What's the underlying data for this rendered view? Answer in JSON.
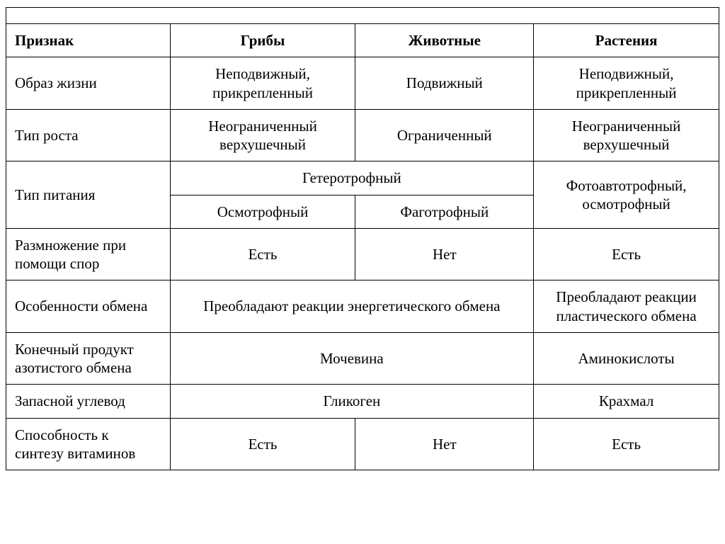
{
  "table": {
    "type": "table",
    "border_color": "#000000",
    "background_color": "#ffffff",
    "font_family": "Times New Roman",
    "header_fontsize": 21,
    "cell_fontsize": 21,
    "columns": {
      "c0": "Признак",
      "c1": "Грибы",
      "c2": "Животные",
      "c3": "Растения"
    },
    "rows": {
      "lifestyle": {
        "label": "Образ жизни",
        "fungi": "Неподвижный, прикрепленный",
        "animals": "Подвижный",
        "plants": "Неподвижный, прикрепленный"
      },
      "growth": {
        "label": "Тип роста",
        "fungi": "Неограниченный верхушечный",
        "animals": "Ограниченный",
        "plants": "Неограниченный верхушечный"
      },
      "nutrition": {
        "label": "Тип питания",
        "hetero": "Гетеротрофный",
        "fungi_sub": "Осмотрофный",
        "animals_sub": "Фаготрофный",
        "plants": "Фотоавтотрофный, осмотрофный"
      },
      "spores": {
        "label": "Размножение при помощи спор",
        "fungi": "Есть",
        "animals": "Нет",
        "plants": "Есть"
      },
      "metabolism": {
        "label": "Особенности обмена",
        "fungi_animals": "Преобладают реакции энергетического обмена",
        "plants": "Преобладают реакции пластического обмена"
      },
      "nitrogen": {
        "label": "Конечный продукт азотистого обмена",
        "fungi_animals": "Мочевина",
        "plants": "Аминокислоты"
      },
      "carb": {
        "label": "Запасной углевод",
        "fungi_animals": "Гликоген",
        "plants": "Крахмал"
      },
      "vitamins": {
        "label": "Способность к синтезу витаминов",
        "fungi": "Есть",
        "animals": "Нет",
        "plants": "Есть"
      }
    }
  }
}
